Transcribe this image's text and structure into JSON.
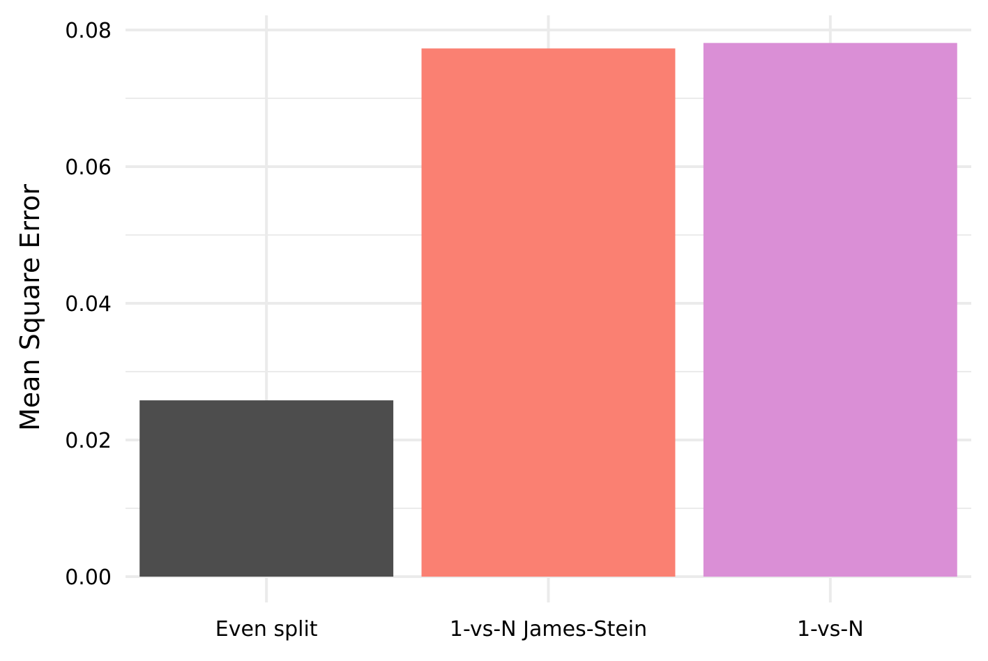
{
  "chart_data": {
    "type": "bar",
    "title": "",
    "xlabel": "",
    "ylabel": "Mean Square Error",
    "categories": [
      "Even split",
      "1-vs-N James-Stein",
      "1-vs-N"
    ],
    "values": [
      0.0258,
      0.0773,
      0.0781
    ],
    "colors": [
      "#4d4d4d",
      "#fa8072",
      "#da8fd6"
    ],
    "ylim": [
      0,
      0.08
    ],
    "yticks": [
      0.0,
      0.02,
      0.04,
      0.06,
      0.08
    ],
    "ytick_labels": [
      "0.00",
      "0.02",
      "0.04",
      "0.06",
      "0.08"
    ],
    "grid": true,
    "grid_color": "#ebebeb",
    "legend": "none"
  }
}
